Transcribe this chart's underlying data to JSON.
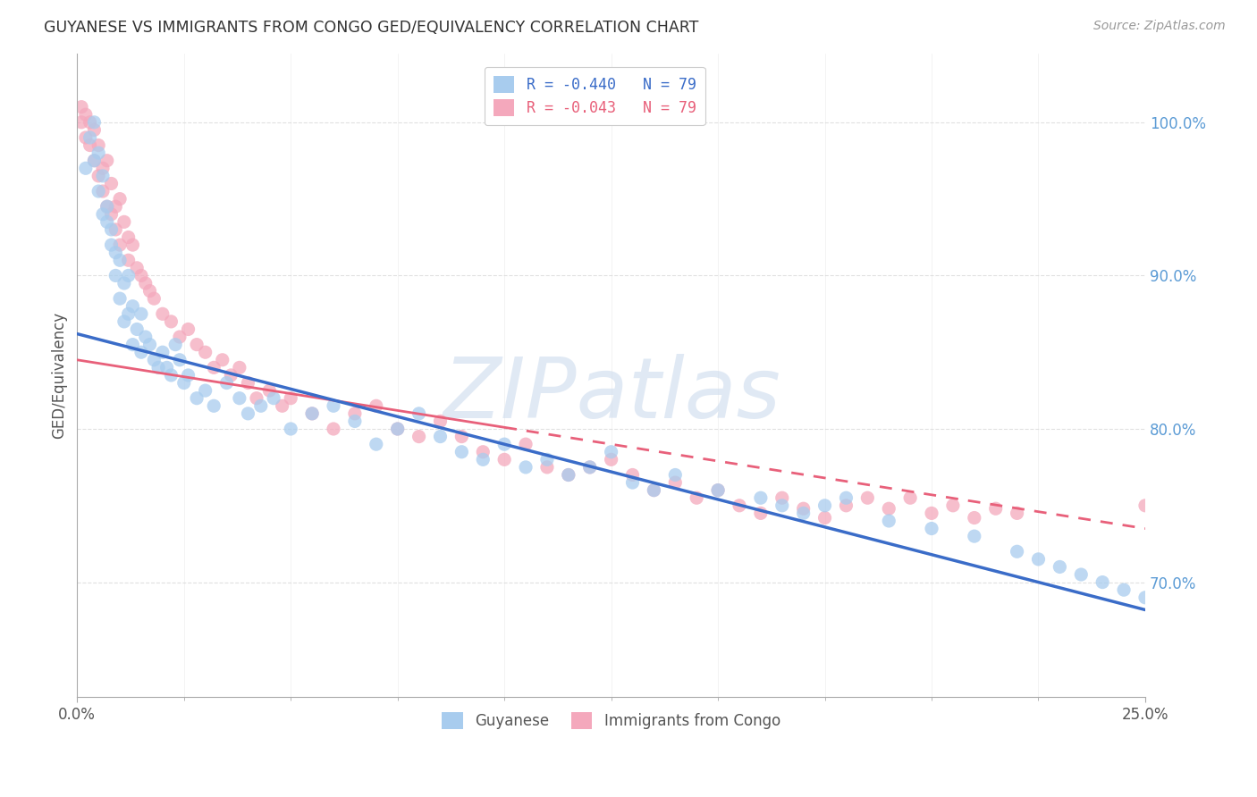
{
  "title": "GUYANESE VS IMMIGRANTS FROM CONGO GED/EQUIVALENCY CORRELATION CHART",
  "source": "Source: ZipAtlas.com",
  "ylabel": "GED/Equivalency",
  "ylabel_right_labels": [
    "70.0%",
    "80.0%",
    "90.0%",
    "100.0%"
  ],
  "ylabel_right_values": [
    0.7,
    0.8,
    0.9,
    1.0
  ],
  "legend_blue_label": "R = -0.440   N = 79",
  "legend_pink_label": "R = -0.043   N = 79",
  "legend_guyanese": "Guyanese",
  "legend_congo": "Immigrants from Congo",
  "xlim": [
    0.0,
    0.25
  ],
  "ylim": [
    0.625,
    1.045
  ],
  "watermark": "ZIPatlas",
  "blue_color": "#A8CCEE",
  "pink_color": "#F4A8BC",
  "blue_line_color": "#3A6CC8",
  "pink_line_color": "#E8607A",
  "background_color": "#FFFFFF",
  "grid_color": "#DDDDDD",
  "blue_trend_x0": 0.0,
  "blue_trend_x1": 0.25,
  "blue_trend_y0": 0.862,
  "blue_trend_y1": 0.682,
  "pink_trend_y0": 0.845,
  "pink_trend_y1": 0.735,
  "blue_scatter_x": [
    0.002,
    0.003,
    0.004,
    0.004,
    0.005,
    0.005,
    0.006,
    0.006,
    0.007,
    0.007,
    0.008,
    0.008,
    0.009,
    0.009,
    0.01,
    0.01,
    0.011,
    0.011,
    0.012,
    0.012,
    0.013,
    0.013,
    0.014,
    0.015,
    0.015,
    0.016,
    0.017,
    0.018,
    0.019,
    0.02,
    0.021,
    0.022,
    0.023,
    0.024,
    0.025,
    0.026,
    0.028,
    0.03,
    0.032,
    0.035,
    0.038,
    0.04,
    0.043,
    0.046,
    0.05,
    0.055,
    0.06,
    0.065,
    0.07,
    0.075,
    0.08,
    0.085,
    0.09,
    0.095,
    0.1,
    0.105,
    0.11,
    0.115,
    0.12,
    0.125,
    0.13,
    0.135,
    0.14,
    0.15,
    0.16,
    0.165,
    0.17,
    0.175,
    0.18,
    0.19,
    0.2,
    0.21,
    0.22,
    0.225,
    0.23,
    0.235,
    0.24,
    0.245,
    0.25
  ],
  "blue_scatter_y": [
    0.97,
    0.99,
    1.0,
    0.975,
    0.98,
    0.955,
    0.94,
    0.965,
    0.935,
    0.945,
    0.92,
    0.93,
    0.915,
    0.9,
    0.91,
    0.885,
    0.895,
    0.87,
    0.9,
    0.875,
    0.88,
    0.855,
    0.865,
    0.875,
    0.85,
    0.86,
    0.855,
    0.845,
    0.84,
    0.85,
    0.84,
    0.835,
    0.855,
    0.845,
    0.83,
    0.835,
    0.82,
    0.825,
    0.815,
    0.83,
    0.82,
    0.81,
    0.815,
    0.82,
    0.8,
    0.81,
    0.815,
    0.805,
    0.79,
    0.8,
    0.81,
    0.795,
    0.785,
    0.78,
    0.79,
    0.775,
    0.78,
    0.77,
    0.775,
    0.785,
    0.765,
    0.76,
    0.77,
    0.76,
    0.755,
    0.75,
    0.745,
    0.75,
    0.755,
    0.74,
    0.735,
    0.73,
    0.72,
    0.715,
    0.71,
    0.705,
    0.7,
    0.695,
    0.69
  ],
  "pink_scatter_x": [
    0.001,
    0.001,
    0.002,
    0.002,
    0.003,
    0.003,
    0.004,
    0.004,
    0.005,
    0.005,
    0.006,
    0.006,
    0.007,
    0.007,
    0.008,
    0.008,
    0.009,
    0.009,
    0.01,
    0.01,
    0.011,
    0.012,
    0.012,
    0.013,
    0.014,
    0.015,
    0.016,
    0.017,
    0.018,
    0.02,
    0.022,
    0.024,
    0.026,
    0.028,
    0.03,
    0.032,
    0.034,
    0.036,
    0.038,
    0.04,
    0.042,
    0.045,
    0.048,
    0.05,
    0.055,
    0.06,
    0.065,
    0.07,
    0.075,
    0.08,
    0.085,
    0.09,
    0.095,
    0.1,
    0.105,
    0.11,
    0.115,
    0.12,
    0.125,
    0.13,
    0.135,
    0.14,
    0.145,
    0.15,
    0.155,
    0.16,
    0.165,
    0.17,
    0.175,
    0.18,
    0.185,
    0.19,
    0.195,
    0.2,
    0.205,
    0.21,
    0.215,
    0.22,
    0.25
  ],
  "pink_scatter_y": [
    1.01,
    1.0,
    1.005,
    0.99,
    1.0,
    0.985,
    0.995,
    0.975,
    0.985,
    0.965,
    0.97,
    0.955,
    0.975,
    0.945,
    0.96,
    0.94,
    0.945,
    0.93,
    0.95,
    0.92,
    0.935,
    0.925,
    0.91,
    0.92,
    0.905,
    0.9,
    0.895,
    0.89,
    0.885,
    0.875,
    0.87,
    0.86,
    0.865,
    0.855,
    0.85,
    0.84,
    0.845,
    0.835,
    0.84,
    0.83,
    0.82,
    0.825,
    0.815,
    0.82,
    0.81,
    0.8,
    0.81,
    0.815,
    0.8,
    0.795,
    0.805,
    0.795,
    0.785,
    0.78,
    0.79,
    0.775,
    0.77,
    0.775,
    0.78,
    0.77,
    0.76,
    0.765,
    0.755,
    0.76,
    0.75,
    0.745,
    0.755,
    0.748,
    0.742,
    0.75,
    0.755,
    0.748,
    0.755,
    0.745,
    0.75,
    0.742,
    0.748,
    0.745,
    0.75
  ]
}
